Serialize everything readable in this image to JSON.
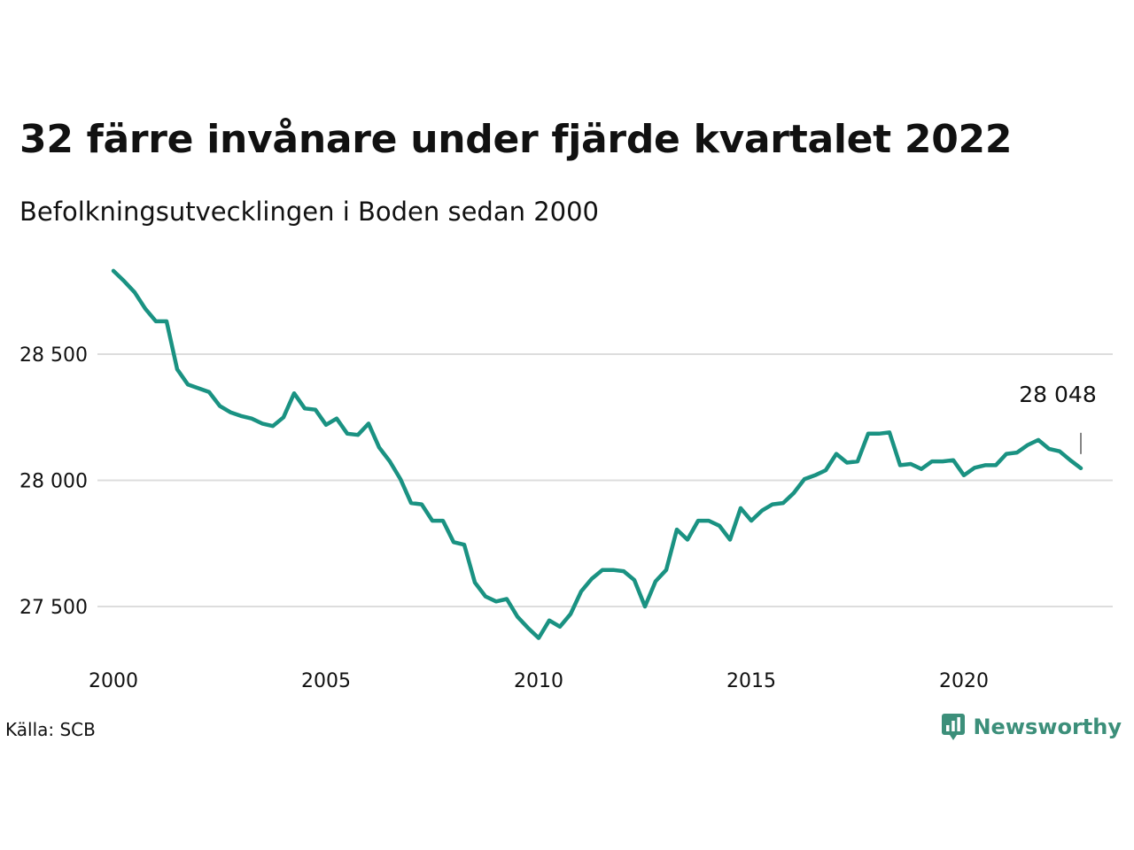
{
  "title": "32 färre invånare under fjärde kvartalet 2022",
  "subtitle": "Befolkningsutvecklingen i Boden sedan 2000",
  "source": "Källa: SCB",
  "brand": {
    "name": "Newsworthy",
    "icon": "newsworthy-logo-icon",
    "color": "#3c8f7a"
  },
  "colors": {
    "line": "#1a9282",
    "grid": "#dddddd"
  },
  "chart_data": {
    "type": "line",
    "title": "32 färre invånare under fjärde kvartalet 2022",
    "subtitle": "Befolkningsutvecklingen i Boden sedan 2000",
    "xlabel": "",
    "ylabel": "",
    "xlim": [
      2000,
      2023.5
    ],
    "ylim": [
      27330,
      28880
    ],
    "grid": true,
    "y_ticks": [
      27500,
      28000,
      28500
    ],
    "y_tick_labels": [
      "27 500",
      "28 000",
      "28 500"
    ],
    "x_ticks": [
      2000,
      2005,
      2010,
      2015,
      2020
    ],
    "x_tick_labels": [
      "2000",
      "2005",
      "2010",
      "2015",
      "2020"
    ],
    "annotation": {
      "x": 2022.75,
      "y": 28048,
      "label": "28 048"
    },
    "series": [
      {
        "x": [
          2000.0,
          2000.25,
          2000.5,
          2000.75,
          2001.0,
          2001.25,
          2001.5,
          2001.75,
          2002.0,
          2002.25,
          2002.5,
          2002.75,
          2003.0,
          2003.25,
          2003.5,
          2003.75,
          2004.0,
          2004.25,
          2004.5,
          2004.75,
          2005.0,
          2005.25,
          2005.5,
          2005.75,
          2006.0,
          2006.25,
          2006.5,
          2006.75,
          2007.0,
          2007.25,
          2007.5,
          2007.75,
          2008.0,
          2008.25,
          2008.5,
          2008.75,
          2009.0,
          2009.25,
          2009.5,
          2009.75,
          2010.0,
          2010.25,
          2010.5,
          2010.75,
          2011.0,
          2011.25,
          2011.5,
          2011.75,
          2012.0,
          2012.25,
          2012.5,
          2012.75,
          2013.0,
          2013.25,
          2013.5,
          2013.75,
          2014.0,
          2014.25,
          2014.5,
          2014.75,
          2015.0,
          2015.25,
          2015.5,
          2015.75,
          2016.0,
          2016.25,
          2016.5,
          2016.75,
          2017.0,
          2017.25,
          2017.5,
          2017.75,
          2018.0,
          2018.25,
          2018.5,
          2018.75,
          2019.0,
          2019.25,
          2019.5,
          2019.75,
          2020.0,
          2020.25,
          2020.5,
          2020.75,
          2021.0,
          2021.25,
          2021.5,
          2021.75,
          2022.0,
          2022.25,
          2022.5,
          2022.75
        ],
        "values": [
          28830,
          28790,
          28745,
          28680,
          28630,
          28630,
          28440,
          28380,
          28365,
          28350,
          28295,
          28270,
          28255,
          28245,
          28225,
          28215,
          28250,
          28345,
          28285,
          28280,
          28220,
          28245,
          28185,
          28180,
          28225,
          28130,
          28075,
          28005,
          27910,
          27905,
          27840,
          27840,
          27755,
          27745,
          27595,
          27540,
          27520,
          27530,
          27460,
          27415,
          27375,
          27445,
          27420,
          27470,
          27560,
          27610,
          27645,
          27645,
          27640,
          27605,
          27500,
          27600,
          27645,
          27805,
          27765,
          27840,
          27840,
          27820,
          27765,
          27890,
          27840,
          27880,
          27905,
          27910,
          27950,
          28005,
          28020,
          28040,
          28105,
          28070,
          28075,
          28185,
          28185,
          28190,
          28060,
          28065,
          28045,
          28075,
          28075,
          28080,
          28020,
          28050,
          28060,
          28060,
          28105,
          28110,
          28140,
          28160,
          28125,
          28115,
          28080,
          28048
        ]
      }
    ]
  }
}
